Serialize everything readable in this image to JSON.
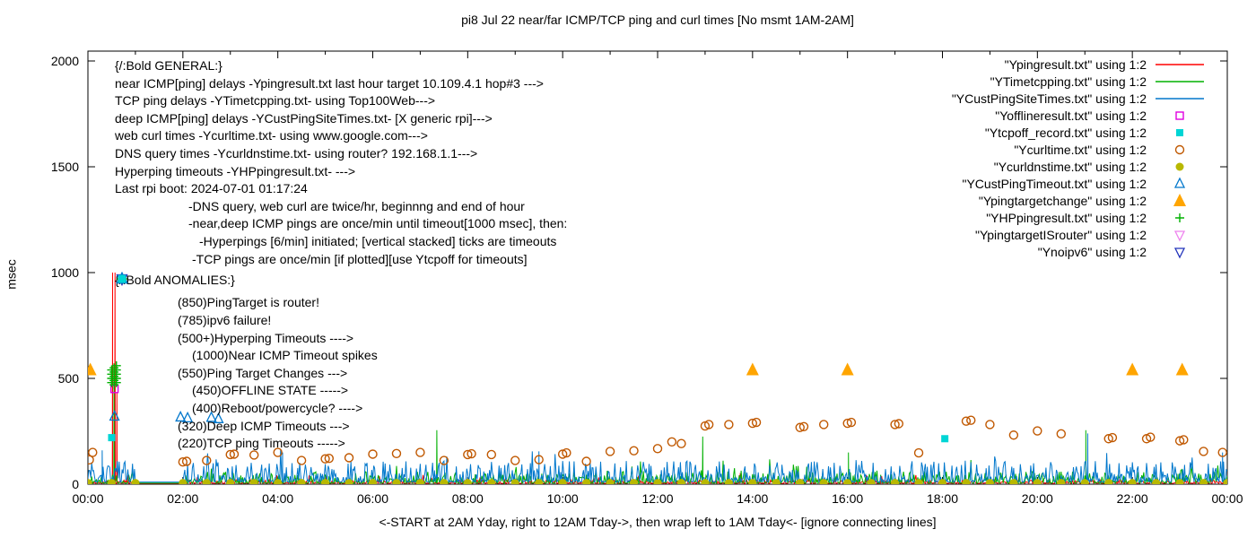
{
  "title": "pi8 Jul 22  near/far ICMP/TCP ping and curl times [No msmt 1AM-2AM]",
  "ylabel": "msec",
  "xlabel": "<-START at 2AM Yday, right to 12AM Tday->, then wrap left to 1AM Tday<- [ignore connecting lines]",
  "general_notes": {
    "lines": [
      {
        "text": "{/:Bold GENERAL:}",
        "indent": 0
      },
      {
        "text": "near ICMP[ping] delays -Ypingresult.txt last hour target 10.109.4.1 hop#3 --->",
        "indent": 0
      },
      {
        "text": "TCP ping delays -YTimetcpping.txt- using Top100Web--->",
        "indent": 0
      },
      {
        "text": "deep ICMP[ping] delays -YCustPingSiteTimes.txt- [X generic rpi]--->",
        "indent": 0
      },
      {
        "text": "web curl times -Ycurltime.txt- using www.google.com--->",
        "indent": 0
      },
      {
        "text": "DNS query times -Ycurldnstime.txt- using router? 192.168.1.1--->",
        "indent": 0
      },
      {
        "text": "Hyperping timeouts -YHPpingresult.txt- --->",
        "indent": 0
      },
      {
        "text": "Last rpi boot: 2024-07-01 01:17:24",
        "indent": 0
      },
      {
        "text": "-DNS query, web curl are twice/hr, beginnng and end of hour",
        "indent": 82
      },
      {
        "text": "-near,deep ICMP pings are once/min until timeout[1000 msec], then:",
        "indent": 82
      },
      {
        "text": "-Hyperpings [6/min] initiated; [vertical stacked] ticks are timeouts",
        "indent": 94
      },
      {
        "text": "-TCP pings are once/min [if plotted][use Ytcpoff for timeouts]",
        "indent": 86
      }
    ]
  },
  "anomaly_notes": {
    "header": "{/:Bold ANOMALIES:}",
    "rows": [
      {
        "icons": [
          {
            "shape": "triangle-down-open",
            "color": "#ee82ee"
          }
        ],
        "text": "(850)PingTarget is router!"
      },
      {
        "icons": [
          {
            "shape": "triangle-down-open",
            "color": "#2233bb"
          }
        ],
        "text": "(785)ipv6 failure!"
      },
      {
        "icons": [
          {
            "shape": "plus",
            "color": "#00b000"
          }
        ],
        "text": "(500+)Hyperping Timeouts ---->"
      },
      {
        "icons": [],
        "text": "(1000)Near ICMP Timeout spikes"
      },
      {
        "icons": [
          {
            "shape": "triangle-up-filled",
            "color": "#ffa500"
          }
        ],
        "text": "(550)Ping Target Changes --->"
      },
      {
        "icons": [],
        "text": "(450)OFFLINE STATE ----->"
      },
      {
        "icons": [],
        "text": "(400)Reboot/powercycle? ---->"
      },
      {
        "icons": [
          {
            "shape": "triangle-up-open",
            "color": "#0077cc"
          },
          {
            "shape": "triangle-up-open",
            "color": "#0077cc"
          },
          {
            "shape": "triangle-up-open",
            "color": "#0077cc"
          }
        ],
        "text": "(320)Deep ICMP Timeouts --->"
      },
      {
        "icons": [
          {
            "shape": "square-filled",
            "color": "#00d5d5"
          }
        ],
        "text": "(220)TCP ping Timeouts ----->"
      }
    ]
  },
  "chart_data": {
    "type": "line",
    "title": "pi8 Jul 22  near/far ICMP/TCP ping and curl times [No msmt 1AM-2AM]",
    "xlabel": "<-START at 2AM Yday, right to 12AM Tday->, then wrap left to 1AM Tday<- [ignore connecting lines]",
    "ylabel": "msec",
    "x_range_hours": [
      0,
      24
    ],
    "x_tick_labels": [
      "00:00",
      "02:00",
      "04:00",
      "06:00",
      "08:00",
      "10:00",
      "12:00",
      "14:00",
      "16:00",
      "18:00",
      "20:00",
      "22:00",
      "00:00"
    ],
    "x_tick_step_hours": 2,
    "x_minor_tick_step_hours": 1,
    "y_range": [
      0,
      2000
    ],
    "y_ticks": [
      0,
      500,
      1000,
      1500,
      2000
    ],
    "grid": false,
    "legend_position": "top-right",
    "measurement_gap_hours": [
      1,
      2
    ],
    "series": [
      {
        "name": "Ypingresult",
        "legend": "\"Ypingresult.txt\" using 1:2",
        "style": "line",
        "color": "#ff0000",
        "seed": 11,
        "base": 4,
        "peak": 22,
        "burst": 40,
        "spikes": [
          [
            0.52,
            1000
          ],
          [
            0.57,
            1000
          ],
          [
            0.61,
            430
          ]
        ]
      },
      {
        "name": "YTimetcpping",
        "legend": "\"YTimetcpping.txt\" using 1:2",
        "style": "line",
        "color": "#00b000",
        "seed": 22,
        "base": 5,
        "peak": 60,
        "burst": 80,
        "spikes": [
          [
            0.55,
            555
          ],
          [
            7.35,
            255
          ],
          [
            12.95,
            225
          ],
          [
            16.02,
            150
          ],
          [
            21.02,
            255
          ]
        ]
      },
      {
        "name": "YCustPingSiteTimes",
        "legend": "\"YCustPingSiteTimes.txt\" using 1:2",
        "style": "line",
        "color": "#0077cc",
        "seed": 33,
        "base": 10,
        "peak": 110,
        "burst": 70,
        "spikes": [
          [
            0.3,
            160
          ],
          [
            4.1,
            150
          ],
          [
            9.5,
            155
          ],
          [
            21.06,
            240
          ],
          [
            23.9,
            150
          ]
        ]
      },
      {
        "name": "Yofflineresult",
        "legend": "\"Yofflineresult.txt\" using 1:2",
        "style": "points",
        "marker": "square-open",
        "color": "#e000e0",
        "points": [
          [
            0.56,
            450
          ]
        ]
      },
      {
        "name": "Ytcpoff_record",
        "legend": "\"Ytcpoff_record.txt\" using 1:2",
        "style": "points",
        "marker": "square-filled",
        "color": "#00d5d5",
        "points": [
          [
            0.5,
            220
          ],
          [
            18.05,
            215
          ]
        ]
      },
      {
        "name": "Ycurltime",
        "legend": "\"Ycurltime.txt\" using 1:2",
        "style": "points",
        "marker": "circle-open",
        "color": "#c05800",
        "points": [
          [
            0.03,
            115
          ],
          [
            0.1,
            150
          ],
          [
            2.0,
            105
          ],
          [
            2.08,
            108
          ],
          [
            2.5,
            112
          ],
          [
            3.0,
            140
          ],
          [
            3.08,
            142
          ],
          [
            3.5,
            138
          ],
          [
            4.0,
            150
          ],
          [
            4.5,
            112
          ],
          [
            5.0,
            120
          ],
          [
            5.08,
            122
          ],
          [
            5.5,
            125
          ],
          [
            6.0,
            142
          ],
          [
            6.5,
            145
          ],
          [
            7.0,
            150
          ],
          [
            7.5,
            112
          ],
          [
            8.0,
            140
          ],
          [
            8.08,
            144
          ],
          [
            8.5,
            140
          ],
          [
            9.0,
            112
          ],
          [
            9.5,
            116
          ],
          [
            10.0,
            142
          ],
          [
            10.08,
            148
          ],
          [
            10.5,
            108
          ],
          [
            11.0,
            155
          ],
          [
            11.5,
            158
          ],
          [
            12.0,
            168
          ],
          [
            12.3,
            200
          ],
          [
            12.5,
            192
          ],
          [
            13.0,
            275
          ],
          [
            13.08,
            282
          ],
          [
            13.5,
            282
          ],
          [
            14.0,
            288
          ],
          [
            14.08,
            292
          ],
          [
            15.0,
            268
          ],
          [
            15.08,
            272
          ],
          [
            15.5,
            282
          ],
          [
            16.0,
            288
          ],
          [
            16.08,
            292
          ],
          [
            17.0,
            282
          ],
          [
            17.08,
            286
          ],
          [
            17.5,
            148
          ],
          [
            18.5,
            298
          ],
          [
            18.6,
            302
          ],
          [
            19.0,
            282
          ],
          [
            19.5,
            232
          ],
          [
            20.0,
            252
          ],
          [
            20.5,
            238
          ],
          [
            21.5,
            215
          ],
          [
            21.58,
            220
          ],
          [
            22.3,
            215
          ],
          [
            22.38,
            222
          ],
          [
            23.0,
            205
          ],
          [
            23.08,
            210
          ],
          [
            23.5,
            155
          ],
          [
            23.9,
            150
          ]
        ]
      },
      {
        "name": "Ycurldnstime",
        "legend": "\"Ycurldnstime.txt\" using 1:2",
        "style": "points",
        "marker": "circle-filled",
        "color": "#b8b800",
        "points_rule": {
          "x_start": 0,
          "x_end": 24,
          "step": 0.5,
          "y": 6,
          "skip_from": 1.01,
          "skip_to": 1.99
        }
      },
      {
        "name": "YCustPingTimeout",
        "legend": "\"YCustPingTimeout.txt\" using 1:2",
        "style": "points",
        "marker": "triangle-up-open",
        "color": "#0077cc",
        "points": [
          [
            0.56,
            320
          ],
          [
            1.95,
            316
          ],
          [
            2.1,
            312
          ],
          [
            2.6,
            314
          ],
          [
            2.75,
            308
          ]
        ]
      },
      {
        "name": "Ypingtargetchange",
        "legend": "\"Ypingtargetchange\" using 1:2",
        "style": "points",
        "marker": "triangle-up-filled",
        "color": "#ffa500",
        "size": 7,
        "points": [
          [
            0.05,
            540
          ],
          [
            14.0,
            540
          ],
          [
            16.0,
            540
          ],
          [
            22.0,
            540
          ],
          [
            23.05,
            540
          ]
        ]
      },
      {
        "name": "YHPpingresult",
        "legend": "\"YHPpingresult.txt\" using 1:2",
        "style": "points",
        "marker": "plus",
        "color": "#00b000",
        "points": [
          [
            0.5,
            480
          ],
          [
            0.5,
            500
          ],
          [
            0.5,
            520
          ],
          [
            0.5,
            540
          ],
          [
            0.55,
            470
          ],
          [
            0.55,
            490
          ],
          [
            0.55,
            510
          ],
          [
            0.55,
            530
          ],
          [
            0.55,
            550
          ],
          [
            0.6,
            480
          ],
          [
            0.6,
            500
          ],
          [
            0.6,
            520
          ],
          [
            0.6,
            540
          ],
          [
            0.6,
            560
          ]
        ]
      },
      {
        "name": "YpingtargetISrouter",
        "legend": "\"YpingtargetISrouter\" using 1:2",
        "style": "points",
        "marker": "triangle-down-open",
        "color": "#ee82ee",
        "points": []
      },
      {
        "name": "Ynoipv6",
        "legend": "\"Ynoipv6\" using 1:2",
        "style": "points",
        "marker": "triangle-down-open",
        "color": "#2233bb",
        "points": []
      }
    ]
  }
}
